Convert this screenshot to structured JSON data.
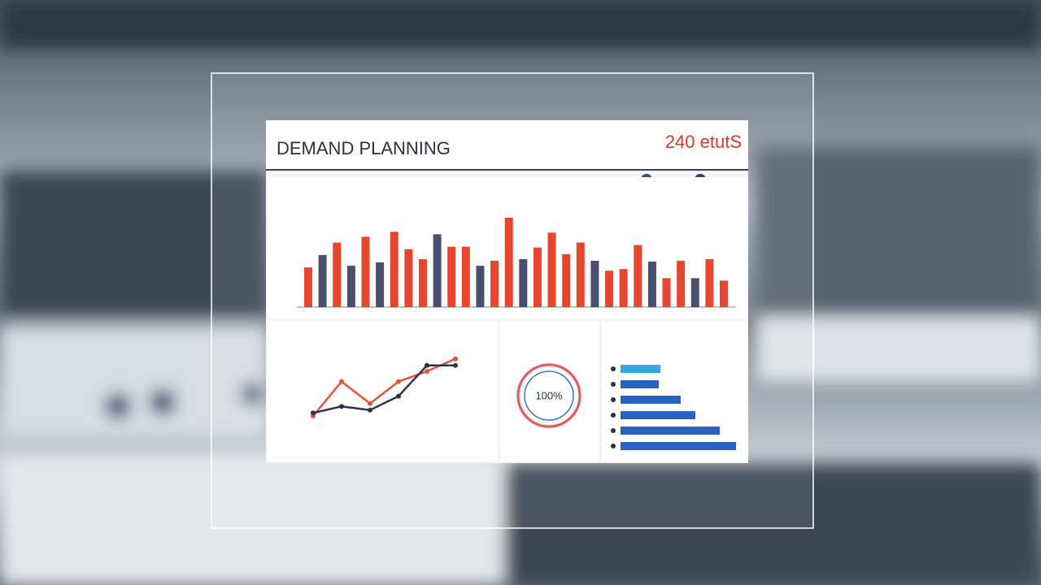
{
  "header": {
    "title": "DEMAND PLANNING",
    "kpi": "240 etutS"
  },
  "bar_chart": {
    "type": "bar",
    "values": [
      48,
      63,
      78,
      50,
      85,
      54,
      91,
      70,
      58,
      88,
      73,
      73,
      50,
      56,
      108,
      58,
      72,
      90,
      64,
      78,
      56,
      44,
      46,
      75,
      55,
      35,
      56,
      35,
      58,
      32
    ],
    "colors": [
      "#e8452f",
      "#4a4f70",
      "#e8452f",
      "#4a4f70",
      "#e8452f",
      "#4a4f70",
      "#e8452f",
      "#e8452f",
      "#e8452f",
      "#4a4f70",
      "#e8452f",
      "#e8452f",
      "#4a4f70",
      "#e8452f",
      "#e8452f",
      "#4a4f70",
      "#e8452f",
      "#e8452f",
      "#e8452f",
      "#e8452f",
      "#4a4f70",
      "#e8452f",
      "#e8452f",
      "#e8452f",
      "#4a4f70",
      "#e8452f",
      "#e8452f",
      "#4a4f70",
      "#e8452f",
      "#e8452f"
    ]
  },
  "line_chart": {
    "type": "line",
    "series": [
      {
        "color": "#e0553a",
        "values": [
          9,
          56,
          26,
          56,
          70,
          87
        ]
      },
      {
        "color": "#2f3447",
        "values": [
          13,
          22,
          17,
          36,
          78,
          78
        ]
      }
    ]
  },
  "donut": {
    "type": "donut",
    "value": 100,
    "value_label": "100%",
    "color": "#e05a5a",
    "inner_color": "#3b72c4"
  },
  "hbar_chart": {
    "type": "hbar",
    "values": [
      49,
      47,
      74,
      92,
      122,
      142
    ],
    "colors": [
      "#38a7e0",
      "#2a62c4",
      "#2a62c4",
      "#2a62c4",
      "#2a62c4",
      "#2a62c4"
    ]
  }
}
